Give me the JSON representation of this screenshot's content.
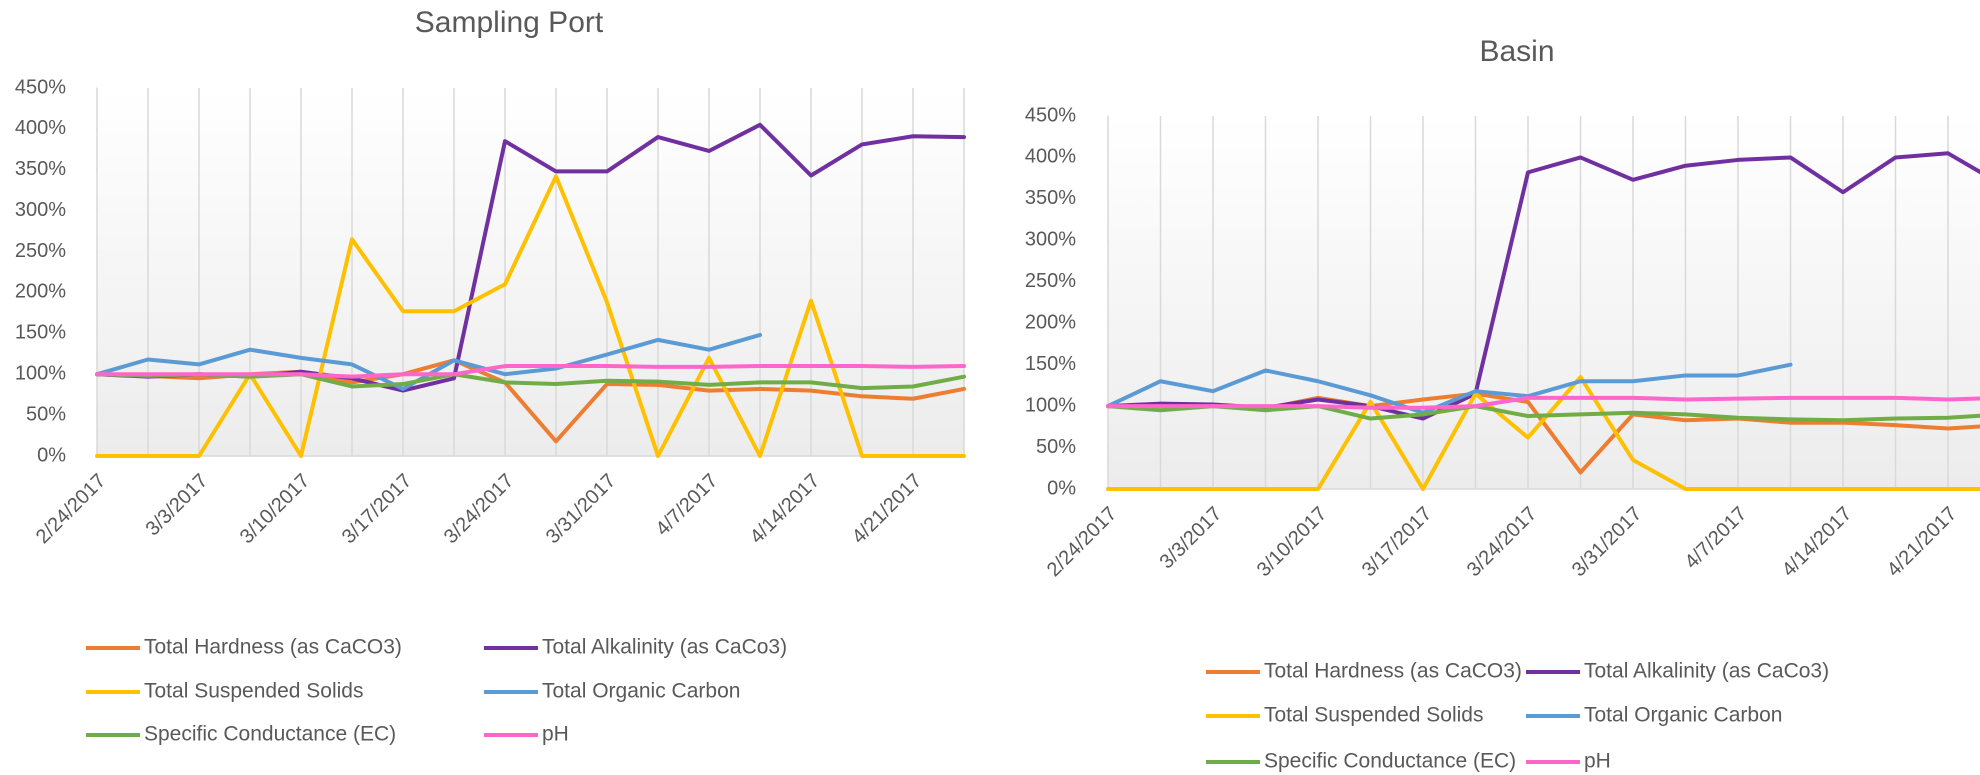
{
  "chart_data": [
    {
      "type": "line",
      "title": "Sampling Port",
      "categories": [
        "2/24/2017",
        null,
        "3/3/2017",
        null,
        "3/10/2017",
        null,
        "3/17/2017",
        null,
        "3/24/2017",
        null,
        "3/31/2017",
        null,
        "4/7/2017",
        null,
        "4/14/2017",
        null,
        "4/21/2017",
        null
      ],
      "ylim": [
        0,
        450
      ],
      "yticks": [
        {
          "value": 0,
          "label": "0%"
        },
        {
          "value": 50,
          "label": "50%"
        },
        {
          "value": 100,
          "label": "100%"
        },
        {
          "value": 150,
          "label": "150%"
        },
        {
          "value": 200,
          "label": "200%"
        },
        {
          "value": 250,
          "label": "250%"
        },
        {
          "value": 300,
          "label": "300%"
        },
        {
          "value": 350,
          "label": "350%"
        },
        {
          "value": 400,
          "label": "400%"
        },
        {
          "value": 450,
          "label": "450%"
        }
      ],
      "grid": true,
      "series": [
        {
          "name": "Total Hardness (as CaCO3)",
          "color": "#ED7D31",
          "values": [
            100,
            98,
            95,
            100,
            103,
            90,
            100,
            117,
            90,
            18,
            88,
            87,
            80,
            82,
            80,
            73,
            70,
            82
          ]
        },
        {
          "name": "Total Alkalinity (as CaCo3)",
          "color": "#7030A0",
          "values": [
            100,
            97,
            100,
            97,
            103,
            95,
            80,
            95,
            385,
            348,
            348,
            390,
            373,
            405,
            343,
            381,
            391,
            390
          ]
        },
        {
          "name": "Total Suspended Solids",
          "color": "#FFC000",
          "values": [
            0,
            0,
            0,
            100,
            0,
            265,
            177,
            177,
            210,
            342,
            188,
            0,
            120,
            0,
            190,
            0,
            0,
            0
          ]
        },
        {
          "name": "Total Organic Carbon",
          "color": "#5B9BD5",
          "values": [
            100,
            118,
            112,
            130,
            120,
            112,
            82,
            117,
            100,
            107,
            124,
            142,
            130,
            148,
            null,
            null,
            null,
            null
          ]
        },
        {
          "name": "Specific Conductance (EC)",
          "color": "#70AD47",
          "values": [
            100,
            98,
            100,
            97,
            100,
            85,
            88,
            100,
            90,
            88,
            92,
            91,
            87,
            90,
            90,
            83,
            85,
            97
          ]
        },
        {
          "name": "pH",
          "color": "#FF66CC",
          "values": [
            100,
            100,
            100,
            100,
            100,
            97,
            100,
            100,
            110,
            110,
            110,
            109,
            109,
            110,
            110,
            110,
            109,
            110
          ]
        }
      ]
    },
    {
      "type": "line",
      "title": "Basin",
      "categories": [
        "2/24/2017",
        null,
        "3/3/2017",
        null,
        "3/10/2017",
        null,
        "3/17/2017",
        null,
        "3/24/2017",
        null,
        "3/31/2017",
        null,
        "4/7/2017",
        null,
        "4/14/2017",
        null,
        "4/21/2017",
        null
      ],
      "ylim": [
        0,
        450
      ],
      "yticks": [
        {
          "value": 0,
          "label": "0%"
        },
        {
          "value": 50,
          "label": "50%"
        },
        {
          "value": 100,
          "label": "100%"
        },
        {
          "value": 150,
          "label": "150%"
        },
        {
          "value": 200,
          "label": "200%"
        },
        {
          "value": 250,
          "label": "250%"
        },
        {
          "value": 300,
          "label": "300%"
        },
        {
          "value": 350,
          "label": "350%"
        },
        {
          "value": 400,
          "label": "400%"
        },
        {
          "value": 450,
          "label": "450%"
        }
      ],
      "grid": true,
      "series": [
        {
          "name": "Total Hardness (as CaCO3)",
          "color": "#ED7D31",
          "values": [
            100,
            100,
            100,
            97,
            110,
            100,
            108,
            115,
            105,
            20,
            90,
            83,
            85,
            80,
            80,
            77,
            73,
            77
          ]
        },
        {
          "name": "Total Alkalinity (as CaCo3)",
          "color": "#7030A0",
          "values": [
            100,
            103,
            102,
            98,
            108,
            100,
            85,
            115,
            382,
            400,
            373,
            390,
            397,
            400,
            358,
            400,
            405,
            368
          ]
        },
        {
          "name": "Total Suspended Solids",
          "color": "#FFC000",
          "values": [
            0,
            0,
            0,
            0,
            0,
            105,
            0,
            115,
            62,
            135,
            35,
            0,
            0,
            0,
            0,
            0,
            0,
            0
          ]
        },
        {
          "name": "Total Organic Carbon",
          "color": "#5B9BD5",
          "values": [
            100,
            130,
            118,
            143,
            130,
            113,
            92,
            118,
            112,
            130,
            130,
            137,
            137,
            150,
            null,
            null,
            null,
            null
          ]
        },
        {
          "name": "Specific Conductance (EC)",
          "color": "#70AD47",
          "values": [
            100,
            95,
            100,
            95,
            100,
            85,
            90,
            100,
            88,
            90,
            92,
            90,
            86,
            84,
            83,
            85,
            86,
            90
          ]
        },
        {
          "name": "pH",
          "color": "#FF66CC",
          "values": [
            100,
            100,
            100,
            100,
            100,
            98,
            98,
            100,
            110,
            110,
            110,
            108,
            109,
            110,
            110,
            110,
            108,
            110
          ]
        }
      ]
    }
  ]
}
